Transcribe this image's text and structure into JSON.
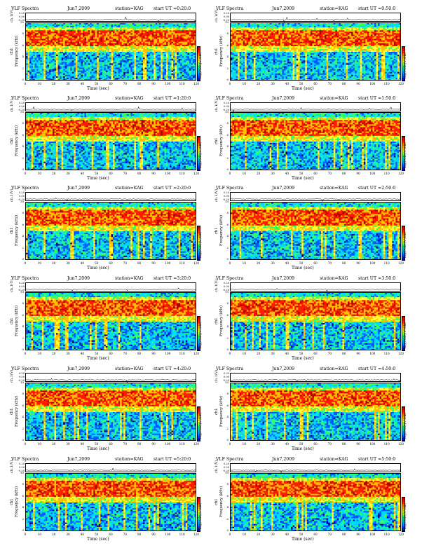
{
  "common": {
    "label": "VLF Spectra",
    "date": "Jun7,2009",
    "station": "station=KAG",
    "strip_ylabel": "ch.1(V)",
    "strip_ticks": [
      "0.20",
      "0.00",
      "-0.20"
    ],
    "y_label_ch": "ch1",
    "y_label_freq": "Frequency (kHz)",
    "y_ticks": [
      "0",
      "2",
      "4",
      "6",
      "8",
      "10"
    ],
    "x_ticks": [
      "0",
      "10",
      "20",
      "30",
      "40",
      "50",
      "60",
      "70",
      "80",
      "90",
      "100",
      "110",
      "120"
    ],
    "x_label": "Time (sec)",
    "colorbar_label": "log(PSD)(V²/Hz)",
    "colors": [
      "#00008c",
      "#0059ff",
      "#00d9ff",
      "#33ff66",
      "#ffff33",
      "#ffbf00",
      "#ff1a00",
      "#b30000"
    ]
  },
  "panels": [
    {
      "start_ut": "start UT =0:20:0"
    },
    {
      "start_ut": "start UT =0:50:0"
    },
    {
      "start_ut": "start UT =1:20:0"
    },
    {
      "start_ut": "start UT =1:50:0"
    },
    {
      "start_ut": "start UT =2:20:0"
    },
    {
      "start_ut": "start UT =2:50:0"
    },
    {
      "start_ut": "start UT =3:20:0"
    },
    {
      "start_ut": "start UT =3:50:0"
    },
    {
      "start_ut": "start UT =4:20:0"
    },
    {
      "start_ut": "start UT =4:50:0"
    },
    {
      "start_ut": "start UT =5:20:0"
    },
    {
      "start_ut": "start UT =5:50:0"
    }
  ],
  "chart_data": {
    "type": "heatmap",
    "layout": "6 rows x 2 columns of spectrogram panels",
    "x_unit_range": [
      0,
      120
    ],
    "y_unit_range_khz": [
      0,
      10
    ],
    "strip_ylim": [
      -0.2,
      0.2
    ],
    "grid": false,
    "description_per_panel": "Each panel: waveform strip ch.1(V) above a VLF spectrogram, Frequency (kHz) 0-10 vs Time (sec) 0-120; high power (red) in 6-8 kHz band with vertical sferic streaks"
  }
}
